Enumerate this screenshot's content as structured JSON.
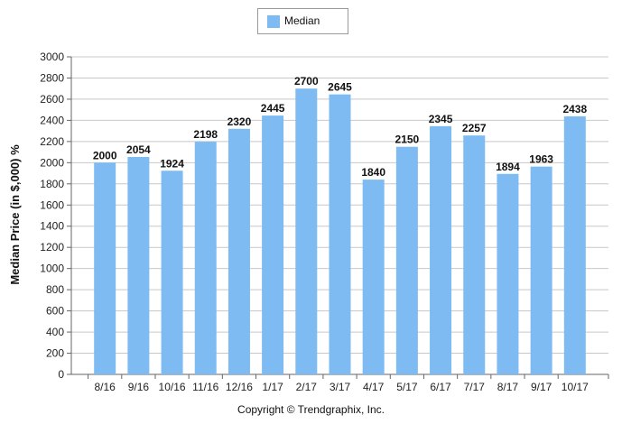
{
  "chart_data": {
    "type": "bar",
    "categories": [
      "8/16",
      "9/16",
      "10/16",
      "11/16",
      "12/16",
      "1/17",
      "2/17",
      "3/17",
      "4/17",
      "5/17",
      "6/17",
      "7/17",
      "8/17",
      "9/17",
      "10/17"
    ],
    "series": [
      {
        "name": "Median",
        "values": [
          2000,
          2054,
          1924,
          2198,
          2320,
          2445,
          2700,
          2645,
          1840,
          2150,
          2345,
          2257,
          1894,
          1963,
          2438
        ],
        "color": "#7dbbf2"
      }
    ],
    "data_labels": [
      "2000",
      "2054",
      "1924",
      "2198",
      "2320",
      "2445",
      "2700",
      "2645",
      "1840",
      "2150",
      "2345",
      "2257",
      "1894",
      "1963",
      "2438"
    ],
    "yticks": [
      "0",
      "200",
      "400",
      "600",
      "800",
      "1000",
      "1200",
      "1400",
      "1600",
      "1800",
      "2000",
      "2200",
      "2400",
      "2600",
      "2800",
      "3000"
    ],
    "ylabel": "Median Price (in $,000) %",
    "xlabel": "",
    "ylim": [
      0,
      3000
    ],
    "grid": true,
    "legend_position": "top-center"
  },
  "legend": {
    "label": "Median",
    "color": "#7dbbf2"
  },
  "footer": {
    "copyright": "Copyright © Trendgraphix, Inc."
  }
}
